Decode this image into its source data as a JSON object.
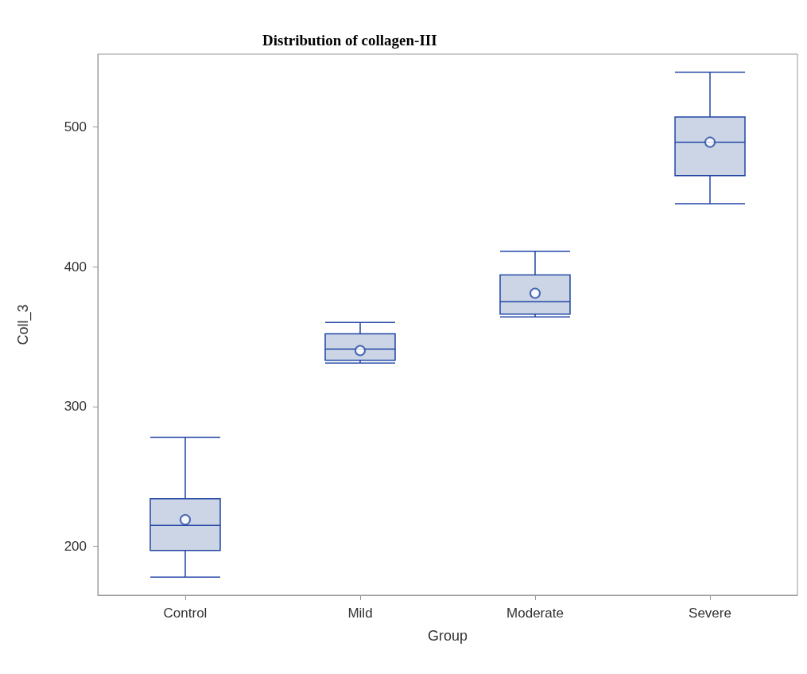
{
  "chart_data": {
    "type": "box",
    "title": "Distribution of collagen-III",
    "xlabel": "Group",
    "ylabel": "Coll_3",
    "categories": [
      "Control",
      "Mild",
      "Moderate",
      "Severe"
    ],
    "color": "#2347a6",
    "marker": "circle",
    "grid": false,
    "boxes": [
      {
        "low": 178,
        "q1": 197,
        "median": 215,
        "q3": 234,
        "high": 278,
        "mean": 219
      },
      {
        "low": 331,
        "q1": 333,
        "median": 341,
        "q3": 352,
        "high": 360,
        "mean": 340
      },
      {
        "low": 364,
        "q1": 366,
        "median": 375,
        "q3": 394,
        "high": 411,
        "mean": 381
      },
      {
        "low": 445,
        "q1": 465,
        "median": 489,
        "q3": 507,
        "high": 539,
        "mean": 489
      }
    ],
    "ylim": [
      165,
      552
    ],
    "yticks": [
      200,
      300,
      400,
      500
    ]
  }
}
